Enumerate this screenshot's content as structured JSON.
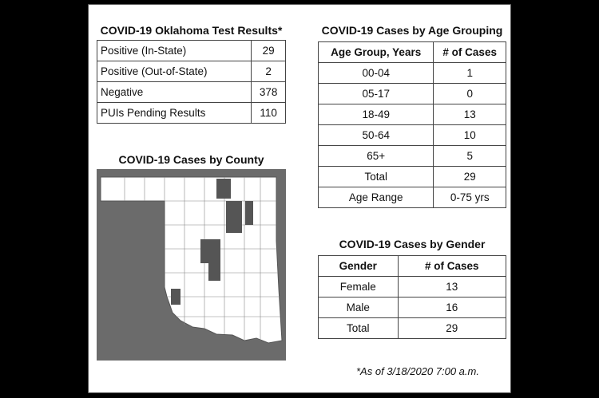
{
  "test_results": {
    "title": "COVID-19 Oklahoma Test Results*",
    "rows": [
      [
        "Positive (In-State)",
        "29"
      ],
      [
        "Positive (Out-of-State)",
        "2"
      ],
      [
        "Negative",
        "378"
      ],
      [
        "PUIs Pending Results",
        "110"
      ]
    ]
  },
  "county_map": {
    "title": "COVID-19 Cases by County"
  },
  "age_table": {
    "title": "COVID-19 Cases by Age Grouping",
    "header": [
      "Age Group, Years",
      "# of Cases"
    ],
    "rows": [
      [
        "00-04",
        "1"
      ],
      [
        "05-17",
        "0"
      ],
      [
        "18-49",
        "13"
      ],
      [
        "50-64",
        "10"
      ],
      [
        "65+",
        "5"
      ],
      [
        "Total",
        "29"
      ],
      [
        "Age Range",
        "0-75 yrs"
      ]
    ]
  },
  "gender_table": {
    "title": "COVID-19 Cases by Gender",
    "header": [
      "Gender",
      "# of Cases"
    ],
    "rows": [
      [
        "Female",
        "13"
      ],
      [
        "Male",
        "16"
      ],
      [
        "Total",
        "29"
      ]
    ]
  },
  "footnote": "*As of 3/18/2020 7:00 a.m."
}
